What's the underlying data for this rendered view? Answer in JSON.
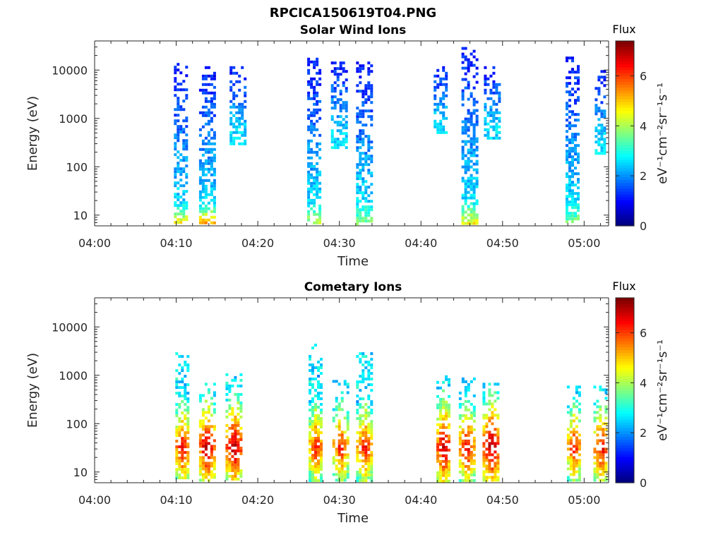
{
  "figure_title": "RPCICA150619T04.PNG",
  "chart_data": [
    {
      "type": "heatmap",
      "title": "Solar Wind Ions",
      "xlabel": "Time",
      "ylabel": "Energy (eV)",
      "x_ticks": [
        "04:00",
        "04:10",
        "04:20",
        "04:30",
        "04:40",
        "04:50",
        "05:00"
      ],
      "xlim": [
        "04:00",
        "05:03"
      ],
      "y_scale": "log",
      "y_ticks": [
        10,
        100,
        1000,
        10000
      ],
      "ylim": [
        6,
        40000
      ],
      "colorbar": {
        "title": "Flux",
        "label": "eV⁻¹cm⁻²sr⁻¹s⁻¹",
        "ticks": [
          0,
          2,
          4,
          6
        ],
        "range": [
          0,
          7.4
        ],
        "colormap": "jet"
      },
      "bursts": [
        {
          "t": "04:10:30",
          "e_low": 6,
          "e_high": 14000,
          "peak_log_flux": 5.2
        },
        {
          "t": "04:13:40",
          "e_low": 6,
          "e_high": 12000,
          "peak_log_flux": 5.8
        },
        {
          "t": "04:17:30",
          "e_low": 300,
          "e_high": 12000,
          "peak_log_flux": 2.8
        },
        {
          "t": "04:26:50",
          "e_low": 6,
          "e_high": 18000,
          "peak_log_flux": 4.5
        },
        {
          "t": "04:29:50",
          "e_low": 250,
          "e_high": 15000,
          "peak_log_flux": 2.6
        },
        {
          "t": "04:33:00",
          "e_low": 6,
          "e_high": 15000,
          "peak_log_flux": 3.8
        },
        {
          "t": "04:42:20",
          "e_low": 500,
          "e_high": 12000,
          "peak_log_flux": 2.6
        },
        {
          "t": "04:45:50",
          "e_low": 6,
          "e_high": 30000,
          "peak_log_flux": 5.0
        },
        {
          "t": "04:48:40",
          "e_low": 400,
          "e_high": 12000,
          "peak_log_flux": 2.5
        },
        {
          "t": "04:58:30",
          "e_low": 6,
          "e_high": 19000,
          "peak_log_flux": 4.0
        },
        {
          "t": "05:02:10",
          "e_low": 200,
          "e_high": 10000,
          "peak_log_flux": 2.6
        }
      ]
    },
    {
      "type": "heatmap",
      "title": "Cometary Ions",
      "xlabel": "Time",
      "ylabel": "Energy (eV)",
      "x_ticks": [
        "04:00",
        "04:10",
        "04:20",
        "04:30",
        "04:40",
        "04:50",
        "05:00"
      ],
      "xlim": [
        "04:00",
        "05:03"
      ],
      "y_scale": "log",
      "y_ticks": [
        10,
        100,
        1000,
        10000
      ],
      "ylim": [
        6,
        40000
      ],
      "colorbar": {
        "title": "Flux",
        "label": "eV⁻¹cm⁻²sr⁻¹s⁻¹",
        "ticks": [
          0,
          2,
          4,
          6
        ],
        "range": [
          0,
          7.4
        ],
        "colormap": "jet"
      },
      "bursts": [
        {
          "t": "04:10:40",
          "e_low": 8,
          "e_high": 3000,
          "peak_log_flux": 6.8
        },
        {
          "t": "04:13:40",
          "e_low": 6,
          "e_high": 700,
          "peak_log_flux": 7.2
        },
        {
          "t": "04:17:00",
          "e_low": 6,
          "e_high": 1100,
          "peak_log_flux": 7.2
        },
        {
          "t": "04:27:00",
          "e_low": 6,
          "e_high": 4500,
          "peak_log_flux": 6.5
        },
        {
          "t": "04:30:00",
          "e_low": 6,
          "e_high": 800,
          "peak_log_flux": 6.5
        },
        {
          "t": "04:33:00",
          "e_low": 6,
          "e_high": 3000,
          "peak_log_flux": 6.5
        },
        {
          "t": "04:42:40",
          "e_low": 6,
          "e_high": 1000,
          "peak_log_flux": 7.2
        },
        {
          "t": "04:45:30",
          "e_low": 6,
          "e_high": 900,
          "peak_log_flux": 6.8
        },
        {
          "t": "04:48:30",
          "e_low": 6,
          "e_high": 700,
          "peak_log_flux": 7.3
        },
        {
          "t": "04:58:40",
          "e_low": 6,
          "e_high": 700,
          "peak_log_flux": 6.5
        },
        {
          "t": "05:02:00",
          "e_low": 6,
          "e_high": 700,
          "peak_log_flux": 6.8
        }
      ]
    }
  ],
  "colors": {
    "background": "#ffffff",
    "axis": "#262626",
    "title": "#000000"
  }
}
